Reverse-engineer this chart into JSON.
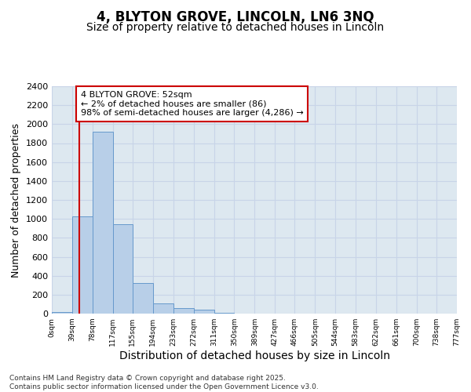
{
  "title": "4, BLYTON GROVE, LINCOLN, LN6 3NQ",
  "subtitle": "Size of property relative to detached houses in Lincoln",
  "xlabel": "Distribution of detached houses by size in Lincoln",
  "ylabel": "Number of detached properties",
  "bar_edges": [
    0,
    39,
    78,
    117,
    155,
    194,
    233,
    272,
    311,
    350,
    389,
    427,
    466,
    505,
    544,
    583,
    622,
    661,
    700,
    738,
    777
  ],
  "bar_values": [
    20,
    1030,
    1920,
    940,
    320,
    105,
    55,
    40,
    5,
    2,
    0,
    0,
    0,
    0,
    0,
    0,
    0,
    0,
    0,
    0
  ],
  "bar_color": "#b8cfe8",
  "bar_edge_color": "#6699cc",
  "bar_linewidth": 0.7,
  "ylim": [
    0,
    2400
  ],
  "yticks": [
    0,
    200,
    400,
    600,
    800,
    1000,
    1200,
    1400,
    1600,
    1800,
    2000,
    2200,
    2400
  ],
  "grid_color": "#c8d4e8",
  "bg_color": "#dde8f0",
  "fig_bg_color": "#ffffff",
  "property_line_x": 52,
  "property_line_color": "#cc0000",
  "annotation_text": "4 BLYTON GROVE: 52sqm\n← 2% of detached houses are smaller (86)\n98% of semi-detached houses are larger (4,286) →",
  "annotation_box_color": "#cc0000",
  "footer_text": "Contains HM Land Registry data © Crown copyright and database right 2025.\nContains public sector information licensed under the Open Government Licence v3.0.",
  "tick_labels": [
    "0sqm",
    "39sqm",
    "78sqm",
    "117sqm",
    "155sqm",
    "194sqm",
    "233sqm",
    "272sqm",
    "311sqm",
    "350sqm",
    "389sqm",
    "427sqm",
    "466sqm",
    "505sqm",
    "544sqm",
    "583sqm",
    "622sqm",
    "661sqm",
    "700sqm",
    "738sqm",
    "777sqm"
  ],
  "title_fontsize": 12,
  "subtitle_fontsize": 10,
  "ylabel_fontsize": 9,
  "xlabel_fontsize": 10
}
